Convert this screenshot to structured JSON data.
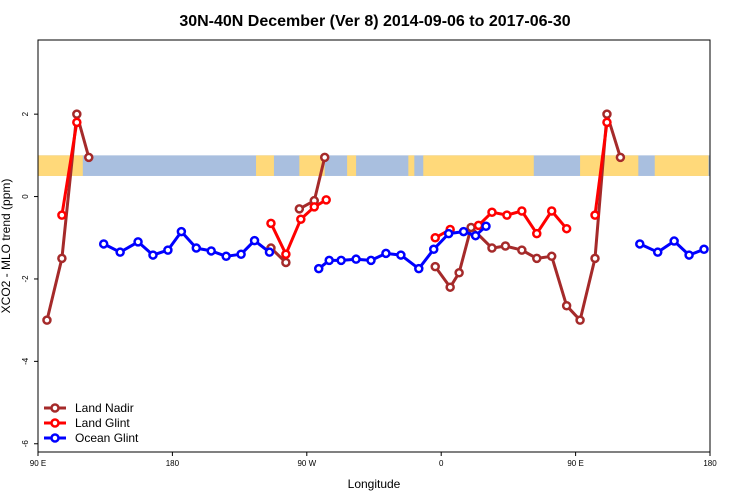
{
  "chart_data": {
    "type": "line",
    "title": "30N-40N December (Ver 8)   2014-09-06 to 2017-06-30",
    "xlabel": "Longitude",
    "ylabel": "XCO2 - MLO trend (ppm)",
    "xlim": [
      90,
      540
    ],
    "ylim": [
      -6.2,
      3.8
    ],
    "x_ticks": [
      {
        "value": 90,
        "label": "90 E"
      },
      {
        "value": 180,
        "label": "180"
      },
      {
        "value": 270,
        "label": "90 W"
      },
      {
        "value": 360,
        "label": "0"
      },
      {
        "value": 450,
        "label": "90 E"
      },
      {
        "value": 540,
        "label": "180"
      }
    ],
    "y_ticks": [
      {
        "value": -6,
        "label": "-6"
      },
      {
        "value": -4,
        "label": "-4"
      },
      {
        "value": -2,
        "label": "-2"
      },
      {
        "value": 0,
        "label": "0"
      },
      {
        "value": 2,
        "label": "2"
      }
    ],
    "land_band": {
      "y_range": [
        0.5,
        1.0
      ],
      "land_color": "#FFD97A",
      "ocean_color": "#A9BFDF",
      "land_segments_x": [
        [
          90,
          120
        ],
        [
          236,
          248
        ],
        [
          265,
          282
        ],
        [
          297,
          303
        ],
        [
          338,
          342
        ],
        [
          348,
          422
        ],
        [
          453,
          492
        ],
        [
          503,
          539
        ]
      ]
    },
    "series": [
      {
        "name": "Land Nadir",
        "color": "#A52A2A",
        "segments": [
          [
            [
              96,
              -3.0
            ],
            [
              106,
              -1.5
            ],
            [
              116,
              2.0
            ],
            [
              124,
              0.95
            ]
          ],
          [
            [
              246,
              -1.25
            ],
            [
              256,
              -1.6
            ]
          ],
          [
            [
              265,
              -0.3
            ],
            [
              275,
              -0.1
            ],
            [
              282,
              0.95
            ]
          ],
          [
            [
              356,
              -1.7
            ],
            [
              366,
              -2.2
            ],
            [
              372,
              -1.85
            ],
            [
              380,
              -0.75
            ],
            [
              394,
              -1.25
            ],
            [
              403,
              -1.2
            ],
            [
              414,
              -1.3
            ],
            [
              424,
              -1.5
            ],
            [
              434,
              -1.45
            ],
            [
              444,
              -2.65
            ],
            [
              453,
              -3.0
            ],
            [
              463,
              -1.5
            ],
            [
              471,
              2.0
            ],
            [
              480,
              0.95
            ]
          ]
        ]
      },
      {
        "name": "Land Glint",
        "color": "#FF0000",
        "segments": [
          [
            [
              106,
              -0.45
            ],
            [
              116,
              1.8
            ]
          ],
          [
            [
              246,
              -0.65
            ],
            [
              256,
              -1.4
            ],
            [
              266,
              -0.55
            ],
            [
              275,
              -0.25
            ],
            [
              283,
              -0.08
            ]
          ],
          [
            [
              356,
              -1.0
            ],
            [
              366,
              -0.8
            ]
          ],
          [
            [
              385,
              -0.7
            ],
            [
              394,
              -0.38
            ],
            [
              404,
              -0.45
            ],
            [
              414,
              -0.35
            ],
            [
              424,
              -0.9
            ],
            [
              434,
              -0.35
            ],
            [
              444,
              -0.78
            ]
          ],
          [
            [
              463,
              -0.45
            ],
            [
              471,
              1.8
            ]
          ]
        ]
      },
      {
        "name": "Ocean Glint",
        "color": "#0000FF",
        "segments": [
          [
            [
              134,
              -1.15
            ],
            [
              145,
              -1.35
            ],
            [
              157,
              -1.1
            ],
            [
              167,
              -1.42
            ],
            [
              177,
              -1.3
            ],
            [
              186,
              -0.85
            ],
            [
              196,
              -1.25
            ],
            [
              206,
              -1.32
            ],
            [
              216,
              -1.45
            ],
            [
              226,
              -1.4
            ],
            [
              235,
              -1.07
            ],
            [
              245,
              -1.35
            ]
          ],
          [
            [
              278,
              -1.75
            ],
            [
              285,
              -1.55
            ],
            [
              293,
              -1.55
            ],
            [
              303,
              -1.52
            ],
            [
              313,
              -1.55
            ],
            [
              323,
              -1.38
            ],
            [
              333,
              -1.42
            ],
            [
              345,
              -1.75
            ],
            [
              355,
              -1.28
            ],
            [
              365,
              -0.9
            ],
            [
              375,
              -0.85
            ],
            [
              383,
              -0.95
            ],
            [
              390,
              -0.72
            ]
          ],
          [
            [
              493,
              -1.15
            ],
            [
              505,
              -1.35
            ],
            [
              516,
              -1.08
            ],
            [
              526,
              -1.42
            ],
            [
              536,
              -1.28
            ]
          ]
        ]
      }
    ],
    "legend": {
      "position": "bottom-left",
      "items": [
        {
          "label": "Land Nadir",
          "color": "#A52A2A"
        },
        {
          "label": "Land Glint",
          "color": "#FF0000"
        },
        {
          "label": "Ocean Glint",
          "color": "#0000FF"
        }
      ]
    }
  }
}
